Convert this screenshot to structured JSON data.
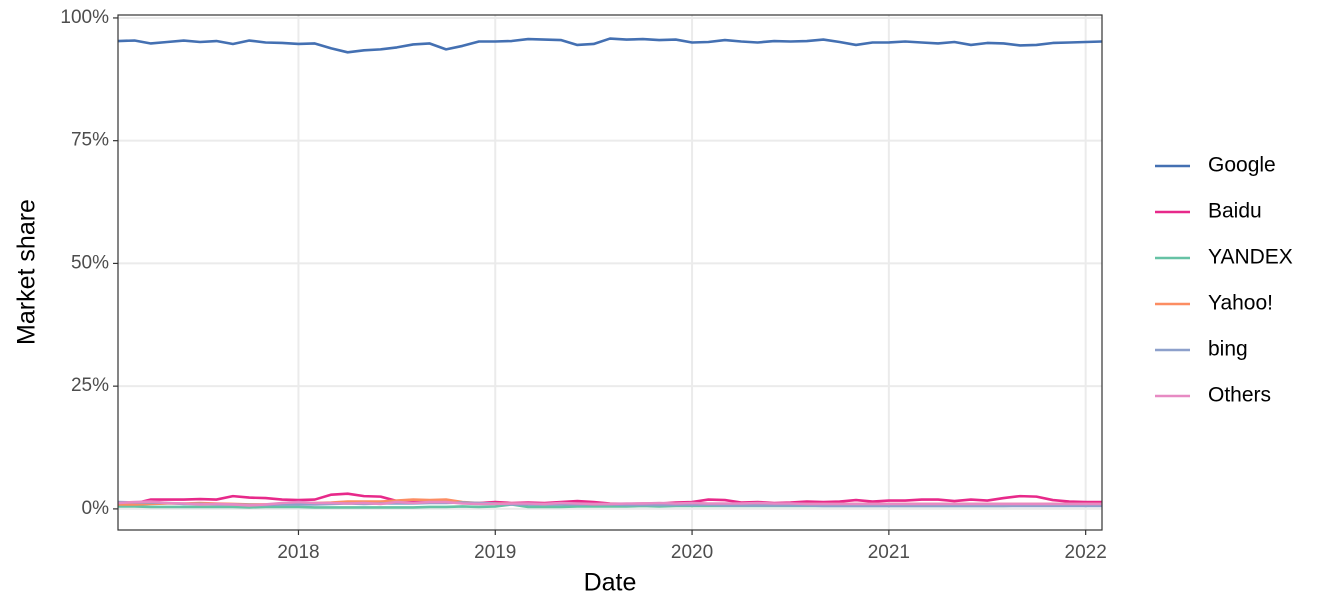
{
  "chart_data": {
    "type": "line",
    "xlabel": "Date",
    "ylabel": "Market share",
    "x": [
      2017.083,
      2017.167,
      2017.25,
      2017.333,
      2017.417,
      2017.5,
      2017.583,
      2017.667,
      2017.75,
      2017.833,
      2017.917,
      2018,
      2018.083,
      2018.167,
      2018.25,
      2018.333,
      2018.417,
      2018.5,
      2018.583,
      2018.667,
      2018.75,
      2018.833,
      2018.917,
      2019,
      2019.083,
      2019.167,
      2019.25,
      2019.333,
      2019.417,
      2019.5,
      2019.583,
      2019.667,
      2019.75,
      2019.833,
      2019.917,
      2020,
      2020.083,
      2020.167,
      2020.25,
      2020.333,
      2020.417,
      2020.5,
      2020.583,
      2020.667,
      2020.75,
      2020.833,
      2020.917,
      2021,
      2021.083,
      2021.167,
      2021.25,
      2021.333,
      2021.417,
      2021.5,
      2021.583,
      2021.667,
      2021.75,
      2021.833,
      2021.917,
      2022,
      2022.083
    ],
    "series": [
      {
        "name": "Google",
        "color": "#4470b2",
        "values": [
          95.3,
          95.4,
          94.8,
          95.1,
          95.4,
          95.1,
          95.3,
          94.7,
          95.4,
          95.0,
          94.9,
          94.7,
          94.8,
          93.8,
          93.0,
          93.4,
          93.6,
          94.0,
          94.6,
          94.8,
          93.6,
          94.3,
          95.2,
          95.2,
          95.3,
          95.7,
          95.6,
          95.5,
          94.5,
          94.7,
          95.8,
          95.6,
          95.7,
          95.5,
          95.6,
          95.0,
          95.1,
          95.5,
          95.2,
          95.0,
          95.3,
          95.2,
          95.3,
          95.6,
          95.1,
          94.5,
          95.0,
          95.0,
          95.2,
          95.0,
          94.8,
          95.1,
          94.5,
          94.9,
          94.8,
          94.4,
          94.5,
          94.9,
          95.0,
          95.1,
          95.2
        ]
      },
      {
        "name": "Baidu",
        "color": "#e7298a",
        "values": [
          0.8,
          1.1,
          1.9,
          1.9,
          1.9,
          2.0,
          1.9,
          2.6,
          2.3,
          2.2,
          1.9,
          1.8,
          1.9,
          2.9,
          3.1,
          2.6,
          2.5,
          1.6,
          1.5,
          1.5,
          1.4,
          1.3,
          1.2,
          1.4,
          1.2,
          1.3,
          1.2,
          1.4,
          1.6,
          1.4,
          1.1,
          1.0,
          1.1,
          1.1,
          1.3,
          1.4,
          1.9,
          1.8,
          1.3,
          1.4,
          1.2,
          1.3,
          1.5,
          1.4,
          1.5,
          1.8,
          1.5,
          1.7,
          1.7,
          1.9,
          1.9,
          1.6,
          1.9,
          1.7,
          2.2,
          2.6,
          2.5,
          1.8,
          1.5,
          1.4,
          1.4
        ]
      },
      {
        "name": "YANDEX",
        "color": "#66c2a5",
        "values": [
          0.5,
          0.5,
          0.4,
          0.4,
          0.4,
          0.4,
          0.4,
          0.4,
          0.3,
          0.4,
          0.4,
          0.4,
          0.3,
          0.3,
          0.3,
          0.3,
          0.3,
          0.3,
          0.3,
          0.4,
          0.4,
          0.5,
          0.4,
          0.5,
          0.9,
          0.4,
          0.4,
          0.4,
          0.5,
          0.5,
          0.5,
          0.5,
          0.6,
          0.5,
          0.6,
          0.6,
          0.6,
          0.6,
          0.6,
          0.6,
          0.6,
          0.6,
          0.6,
          0.6,
          0.6,
          0.6,
          0.6,
          0.6,
          0.6,
          0.6,
          0.6,
          0.6,
          0.6,
          0.6,
          0.6,
          0.7,
          0.7,
          0.7,
          0.8,
          0.8,
          0.8
        ]
      },
      {
        "name": "Yahoo!",
        "color": "#fc8d62",
        "values": [
          0.9,
          0.9,
          1.0,
          1.1,
          1.1,
          1.2,
          1.1,
          1.0,
          0.9,
          0.9,
          1.0,
          1.1,
          1.2,
          1.3,
          1.5,
          1.5,
          1.5,
          1.7,
          1.9,
          1.8,
          1.9,
          1.4,
          1.2,
          1.1,
          1.1,
          1.0,
          1.0,
          1.0,
          1.0,
          0.9,
          1.0,
          1.0,
          1.0,
          1.1,
          1.0,
          0.9,
          0.9,
          1.0,
          1.0,
          1.0,
          1.0,
          1.0,
          1.0,
          1.0,
          1.0,
          1.0,
          1.0,
          1.0,
          1.0,
          1.0,
          1.0,
          1.0,
          1.0,
          1.0,
          1.0,
          1.0,
          1.0,
          1.0,
          1.0,
          1.0,
          1.0
        ]
      },
      {
        "name": "bing",
        "color": "#8da0cb",
        "values": [
          1.4,
          1.3,
          1.3,
          1.2,
          1.0,
          1.0,
          0.9,
          0.9,
          0.8,
          0.8,
          0.9,
          0.9,
          0.9,
          1.0,
          1.1,
          1.0,
          1.1,
          1.1,
          1.1,
          1.2,
          1.2,
          1.3,
          1.2,
          1.1,
          0.9,
          0.9,
          0.9,
          0.9,
          0.9,
          0.9,
          0.9,
          0.8,
          0.8,
          0.8,
          0.8,
          0.8,
          0.8,
          0.7,
          0.7,
          0.7,
          0.7,
          0.7,
          0.7,
          0.6,
          0.6,
          0.6,
          0.6,
          0.6,
          0.6,
          0.6,
          0.6,
          0.6,
          0.6,
          0.6,
          0.6,
          0.6,
          0.6,
          0.6,
          0.6,
          0.6,
          0.6
        ]
      },
      {
        "name": "Others",
        "color": "#e78ac3",
        "values": [
          1.2,
          1.4,
          1.5,
          1.2,
          1.1,
          0.9,
          1.0,
          0.9,
          0.7,
          0.9,
          1.2,
          1.4,
          1.2,
          1.2,
          1.1,
          1.2,
          1.0,
          1.4,
          1.2,
          1.4,
          1.4,
          1.1,
          1.0,
          1.0,
          1.1,
          1.1,
          1.0,
          1.2,
          1.1,
          1.0,
          1.0,
          1.1,
          1.1,
          1.2,
          1.1,
          1.2,
          1.1,
          1.1,
          1.1,
          1.2,
          1.1,
          1.1,
          1.0,
          1.0,
          1.0,
          1.0,
          1.0,
          1.0,
          1.0,
          1.0,
          1.0,
          1.0,
          1.0,
          1.0,
          1.0,
          1.0,
          1.0,
          1.0,
          1.0,
          1.0,
          1.0
        ]
      }
    ],
    "xlim": [
      2017.083,
      2022.083
    ],
    "xticks": [
      2018,
      2019,
      2020,
      2021,
      2022
    ],
    "ylim": [
      -4.3,
      100.6
    ],
    "yticks": [
      {
        "value": 0,
        "label": "0%"
      },
      {
        "value": 25,
        "label": "25%"
      },
      {
        "value": 50,
        "label": "50%"
      },
      {
        "value": 75,
        "label": "75%"
      },
      {
        "value": 100,
        "label": "100%"
      }
    ],
    "grid": true,
    "legend": "right"
  }
}
